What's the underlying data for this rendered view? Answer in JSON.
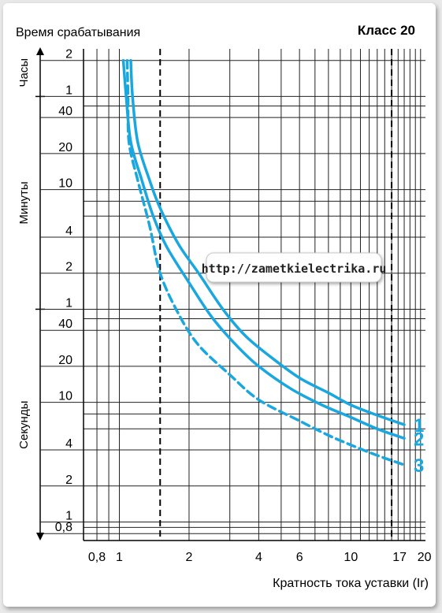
{
  "chart_data": {
    "type": "line",
    "title": "Класс 20",
    "ylabel": "Время срабатывания",
    "xlabel": "Кратность тока уставки (Ir)",
    "watermark": "http://zametkielectrika.ru",
    "x_scale": "log",
    "y_scale": "log",
    "xlim": [
      0.7,
      21
    ],
    "ylim_seconds": [
      0.7,
      9000
    ],
    "x_ticks": [
      {
        "value": 0.8,
        "label": "0,8"
      },
      {
        "value": 1,
        "label": "1"
      },
      {
        "value": 2,
        "label": "2"
      },
      {
        "value": 4,
        "label": "4"
      },
      {
        "value": 6,
        "label": "6"
      },
      {
        "value": 10,
        "label": "10"
      },
      {
        "value": 17,
        "label": "17"
      },
      {
        "value": 20,
        "label": "20"
      }
    ],
    "y_ticks": [
      {
        "seconds": 0.8,
        "label": "0,8"
      },
      {
        "seconds": 1,
        "label": "1"
      },
      {
        "seconds": 2,
        "label": "2"
      },
      {
        "seconds": 4,
        "label": "4"
      },
      {
        "seconds": 10,
        "label": "10"
      },
      {
        "seconds": 20,
        "label": "20"
      },
      {
        "seconds": 40,
        "label": "40"
      },
      {
        "seconds": 60,
        "label": "1"
      },
      {
        "seconds": 120,
        "label": "2"
      },
      {
        "seconds": 240,
        "label": "4"
      },
      {
        "seconds": 600,
        "label": "10"
      },
      {
        "seconds": 1200,
        "label": "20"
      },
      {
        "seconds": 2400,
        "label": "40"
      },
      {
        "seconds": 3600,
        "label": "1"
      },
      {
        "seconds": 7200,
        "label": "2"
      }
    ],
    "y_gridlines_seconds": [
      0.8,
      0.9,
      1,
      2,
      4,
      6,
      8,
      10,
      20,
      40,
      50,
      60,
      120,
      240,
      360,
      480,
      600,
      1200,
      2400,
      3000,
      3600,
      7200
    ],
    "x_gridlines": [
      0.8,
      0.9,
      1,
      2,
      3,
      4,
      5,
      6,
      7,
      8,
      9,
      10,
      11,
      12,
      13,
      14,
      15,
      16,
      17,
      18,
      19,
      20
    ],
    "dashed_verticals": [
      1.5,
      15
    ],
    "y_groups": [
      {
        "label": "Часы",
        "from_seconds": 3600,
        "to_seconds": 9000
      },
      {
        "label": "Минуты",
        "from_seconds": 60,
        "to_seconds": 3600
      },
      {
        "label": "Секунды",
        "from_seconds": 0.7,
        "to_seconds": 60
      }
    ],
    "series": [
      {
        "name": "1",
        "color": "#1aa7df",
        "style": "solid",
        "points": [
          [
            1.12,
            7200
          ],
          [
            1.14,
            3600
          ],
          [
            1.2,
            1500
          ],
          [
            1.35,
            720
          ],
          [
            1.5,
            420
          ],
          [
            1.8,
            210
          ],
          [
            2.2,
            120
          ],
          [
            2.8,
            60
          ],
          [
            3.5,
            36
          ],
          [
            4.5,
            24
          ],
          [
            6,
            16
          ],
          [
            8,
            12
          ],
          [
            10,
            9.5
          ],
          [
            13,
            7.8
          ],
          [
            17,
            6.5
          ]
        ]
      },
      {
        "name": "2",
        "color": "#1aa7df",
        "style": "solid",
        "points": [
          [
            1.04,
            7200
          ],
          [
            1.07,
            3600
          ],
          [
            1.12,
            1500
          ],
          [
            1.25,
            720
          ],
          [
            1.4,
            360
          ],
          [
            1.6,
            200
          ],
          [
            2,
            100
          ],
          [
            2.5,
            52
          ],
          [
            3.2,
            30
          ],
          [
            4,
            20
          ],
          [
            5.5,
            13
          ],
          [
            7.5,
            9.5
          ],
          [
            10,
            7.5
          ],
          [
            13,
            6
          ],
          [
            17,
            5
          ]
        ]
      },
      {
        "name": "3",
        "color": "#1aa7df",
        "style": "dashed",
        "points": [
          [
            1.08,
            7200
          ],
          [
            1.09,
            3600
          ],
          [
            1.1,
            1500
          ],
          [
            1.2,
            720
          ],
          [
            1.35,
            300
          ],
          [
            1.5,
            120
          ],
          [
            1.8,
            55
          ],
          [
            2.2,
            30
          ],
          [
            3,
            17
          ],
          [
            4,
            10.5
          ],
          [
            6,
            7
          ],
          [
            8,
            5.3
          ],
          [
            10,
            4.4
          ],
          [
            13,
            3.6
          ],
          [
            17,
            3
          ]
        ]
      }
    ]
  }
}
